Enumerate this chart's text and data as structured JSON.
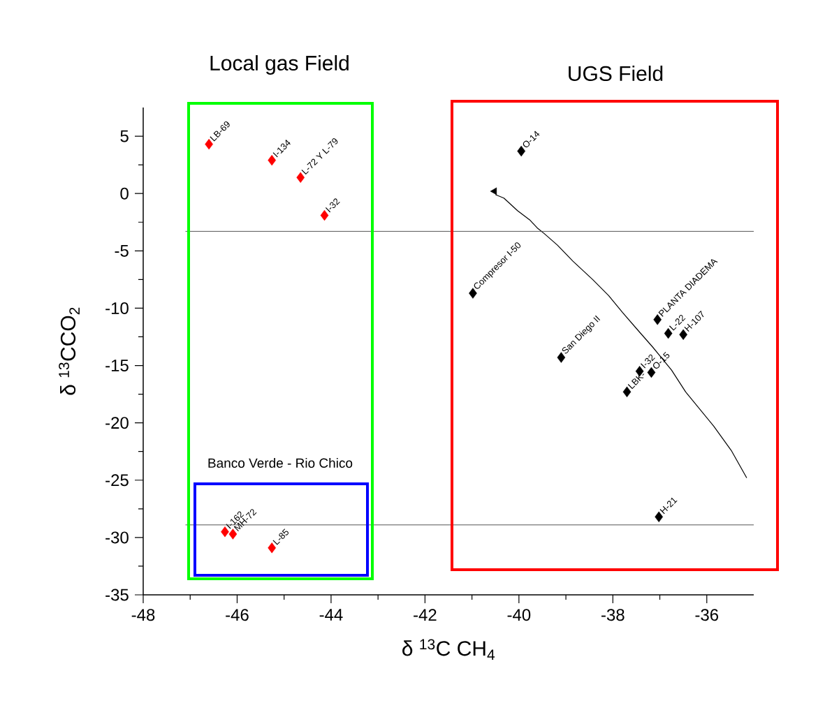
{
  "chart_data": {
    "type": "scatter",
    "xlabel": "δ $^{13}$C CH$_{4}$",
    "ylabel": "δ $^{13}$CCO$_{2}$",
    "xlim": [
      -48,
      -35
    ],
    "ylim": [
      -35,
      7.5
    ],
    "xticks": [
      -48,
      -46,
      -44,
      -42,
      -40,
      -38,
      -36
    ],
    "yticks": [
      -35,
      -30,
      -25,
      -20,
      -15,
      -10,
      -5,
      0,
      5
    ],
    "grid": false,
    "annotations": [
      "Local gas Field",
      "UGS Field",
      "Banco Verde - Rio Chico"
    ],
    "ref_lines": [
      {
        "axis": "y",
        "value": -3.3
      },
      {
        "axis": "y",
        "value": -28.9
      }
    ],
    "series": [
      {
        "color": "#ff0000",
        "marker": "diamond",
        "x": [
          -46.6,
          -45.26,
          -44.65,
          -44.14,
          -46.26,
          -46.09,
          -45.26
        ],
        "values": [
          4.3,
          2.9,
          1.4,
          -1.9,
          -29.5,
          -29.7,
          -30.9
        ],
        "value_labels": [
          "LB-69",
          "I-134",
          "L-72 Y L-79",
          "I-32",
          "I-162",
          "MH-72",
          "L-85"
        ]
      },
      {
        "color": "#000000",
        "marker": "diamond",
        "x": [
          -39.95,
          -40.98,
          -39.1,
          -37.05,
          -36.82,
          -36.5,
          -37.43,
          -37.18,
          -37.7,
          -37.02
        ],
        "values": [
          3.7,
          -8.7,
          -14.3,
          -11.0,
          -12.2,
          -12.3,
          -15.5,
          -15.6,
          -17.3,
          -28.2
        ],
        "value_labels": [
          "O-14",
          "Compresor I-50",
          "San Diego II",
          "PLANTA DIADEMA",
          "L-22",
          "H-107",
          "I-32",
          "O-15",
          "LBK-",
          "H-21"
        ]
      },
      {
        "type": "line",
        "color": "#000000",
        "marker": "none",
        "x": [
          -40.5,
          -40.32,
          -40.03,
          -39.77,
          -39.61,
          -39.46,
          -39.18,
          -38.85,
          -38.43,
          -38.09,
          -37.79,
          -37.45,
          -37.15,
          -36.75,
          -36.45,
          -35.85,
          -35.48,
          -35.15
        ],
        "values": [
          -0.1,
          -0.4,
          -1.5,
          -2.3,
          -3.0,
          -3.5,
          -4.5,
          -5.9,
          -7.5,
          -8.9,
          -10.4,
          -12.0,
          -13.4,
          -15.4,
          -17.3,
          -20.3,
          -22.4,
          -24.8
        ]
      },
      {
        "color": "#000000",
        "marker": "triangle",
        "x": [
          -40.52
        ],
        "values": [
          0.2
        ]
      }
    ]
  }
}
